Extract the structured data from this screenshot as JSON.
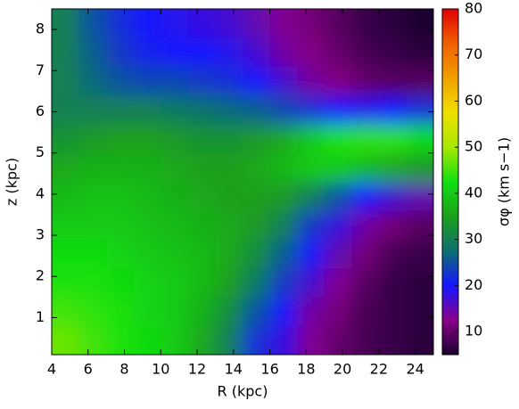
{
  "chart_data": {
    "type": "heatmap",
    "xlabel": "R (kpc)",
    "ylabel": "z (kpc)",
    "colorbar_label": "σφ (km s−1)",
    "x": [
      4.75,
      6.25,
      7.75,
      9.25,
      10.75,
      12.25,
      13.75,
      15.25,
      16.75,
      18.25,
      19.75,
      21.25,
      22.75,
      24.25
    ],
    "y": [
      0.45,
      1.15,
      1.85,
      2.55,
      3.25,
      3.95,
      4.65,
      5.35,
      6.05,
      6.75,
      7.45,
      8.15
    ],
    "values": [
      [
        47,
        45,
        43,
        42,
        40,
        36,
        30,
        22,
        18,
        13,
        10,
        8,
        7,
        6
      ],
      [
        45,
        44,
        43,
        41,
        40,
        37,
        32,
        25,
        20,
        14,
        11,
        8,
        7,
        6
      ],
      [
        43,
        43,
        42,
        41,
        40,
        38,
        35,
        29,
        23,
        17,
        13,
        9,
        7,
        6
      ],
      [
        42,
        42,
        41,
        40,
        39,
        38,
        36,
        32,
        26,
        20,
        15,
        11,
        8,
        7
      ],
      [
        40,
        40,
        40,
        39,
        38,
        37,
        36,
        34,
        30,
        23,
        18,
        14,
        11,
        9
      ],
      [
        38,
        39,
        39,
        38,
        37,
        36,
        35,
        35,
        34,
        30,
        25,
        20,
        17,
        15
      ],
      [
        36,
        37,
        37,
        37,
        36,
        35,
        35,
        36,
        38,
        40,
        40,
        38,
        36,
        34
      ],
      [
        33,
        34,
        35,
        35,
        34,
        33,
        33,
        34,
        36,
        40,
        43,
        44,
        44,
        42
      ],
      [
        30,
        30,
        30,
        30,
        29,
        28,
        27,
        26,
        24,
        22,
        20,
        19,
        20,
        22
      ],
      [
        30,
        27,
        25,
        24,
        24,
        23,
        22,
        20,
        17,
        14,
        12,
        10,
        9,
        9
      ],
      [
        30,
        26,
        23,
        21,
        20,
        20,
        19,
        17,
        14,
        12,
        10,
        8,
        7,
        6
      ],
      [
        30,
        25,
        22,
        20,
        19,
        18,
        17,
        15,
        13,
        11,
        9,
        7,
        6,
        5
      ]
    ],
    "xlim": [
      4,
      25
    ],
    "ylim": [
      0.1,
      8.5
    ],
    "xticks": [
      4,
      6,
      8,
      10,
      12,
      14,
      16,
      18,
      20,
      22,
      24
    ],
    "yticks": [
      1,
      2,
      3,
      4,
      5,
      6,
      7,
      8
    ],
    "clim": [
      5,
      80
    ],
    "cticks": [
      10,
      20,
      30,
      40,
      50,
      60,
      70,
      80
    ],
    "colormap": [
      "#1a0030",
      "#8a008a",
      "#1515ff",
      "#0d7070",
      "#1ca01c",
      "#10e010",
      "#a8e800",
      "#f0e000",
      "#f0a000",
      "#f06000",
      "#e00000"
    ]
  }
}
